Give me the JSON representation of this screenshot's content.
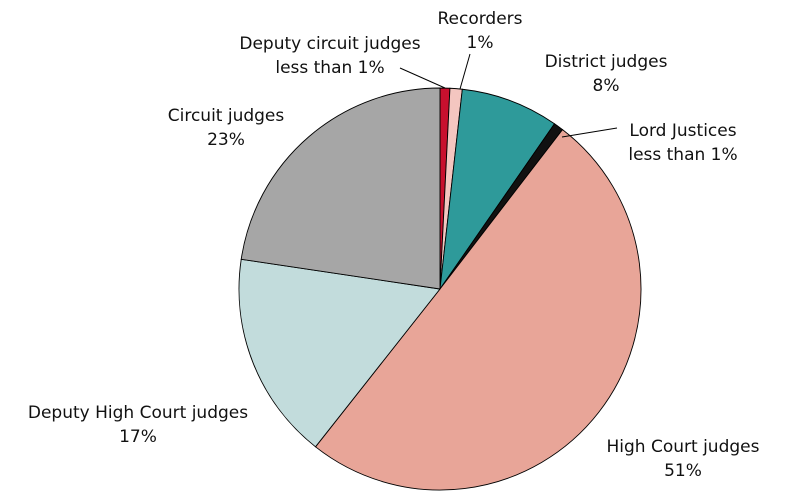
{
  "chart_data": {
    "type": "pie",
    "categories": [
      "Deputy circuit judges",
      "Recorders",
      "District judges",
      "Lord Justices",
      "High Court judges",
      "Deputy High Court judges",
      "Circuit judges"
    ],
    "values": [
      0.8,
      1,
      8,
      0.8,
      51,
      17,
      23
    ],
    "value_labels": [
      "less than 1%",
      "1%",
      "8%",
      "less than 1%",
      "51%",
      "17%",
      "23%"
    ],
    "colors": [
      "#c8102e",
      "#f4c6c0",
      "#2e9a9a",
      "#111111",
      "#e8a598",
      "#c2dcdc",
      "#a6a6a6"
    ]
  }
}
